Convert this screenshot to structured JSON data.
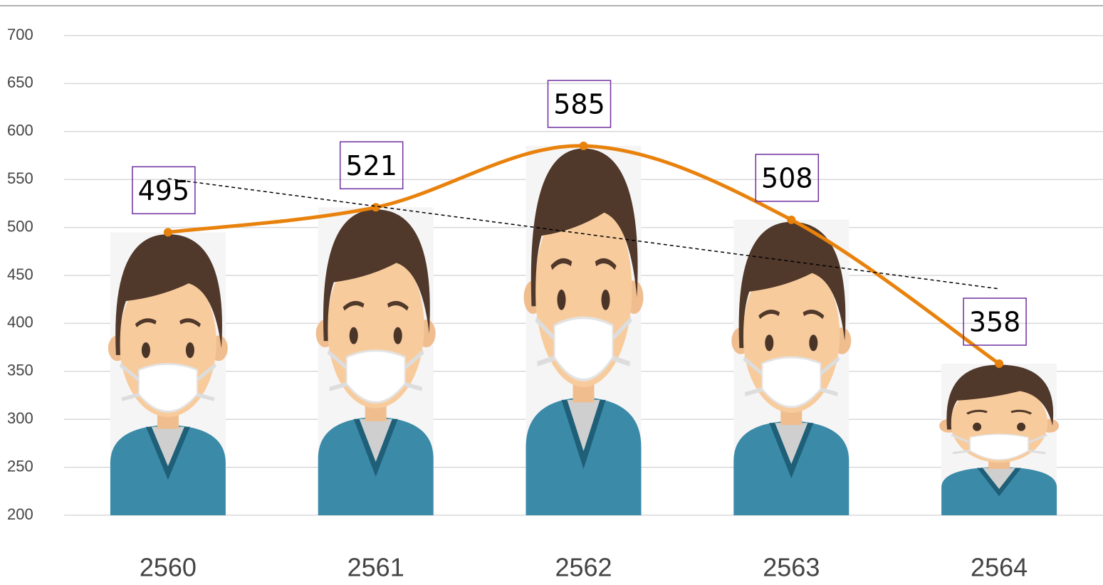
{
  "chart_data": {
    "type": "bar-line",
    "categories": [
      "2560",
      "2561",
      "2562",
      "2563",
      "2564"
    ],
    "values": [
      495,
      521,
      585,
      508,
      358
    ],
    "color": "#e8820c",
    "label_border_color": "#7030a0",
    "ylim": [
      200,
      700
    ],
    "yticks": [
      200,
      250,
      300,
      350,
      400,
      450,
      500,
      550,
      600,
      650,
      700
    ],
    "grid": true,
    "trendline": true
  }
}
